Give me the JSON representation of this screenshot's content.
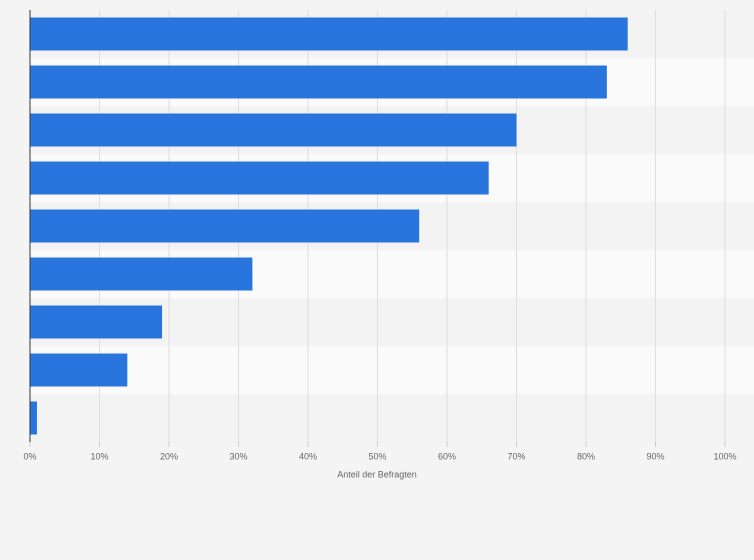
{
  "chart_data": {
    "type": "hbar",
    "categories": [
      null,
      null,
      null,
      null,
      null,
      null,
      null,
      null,
      null
    ],
    "values": [
      86,
      83,
      70,
      66,
      56,
      32,
      19,
      14,
      1
    ],
    "color": "#2876dd",
    "xlabel": "Anteil der Befragten",
    "xlim": [
      0,
      100
    ],
    "xticks": [
      {
        "value": 0,
        "label": "0%"
      },
      {
        "value": 10,
        "label": "10%"
      },
      {
        "value": 20,
        "label": "20%"
      },
      {
        "value": 30,
        "label": "30%"
      },
      {
        "value": 40,
        "label": "40%"
      },
      {
        "value": 50,
        "label": "50%"
      },
      {
        "value": 60,
        "label": "60%"
      },
      {
        "value": 70,
        "label": "70%"
      },
      {
        "value": 80,
        "label": "80%"
      },
      {
        "value": 90,
        "label": "90%"
      },
      {
        "value": 100,
        "label": "100%"
      }
    ],
    "grid": true
  }
}
